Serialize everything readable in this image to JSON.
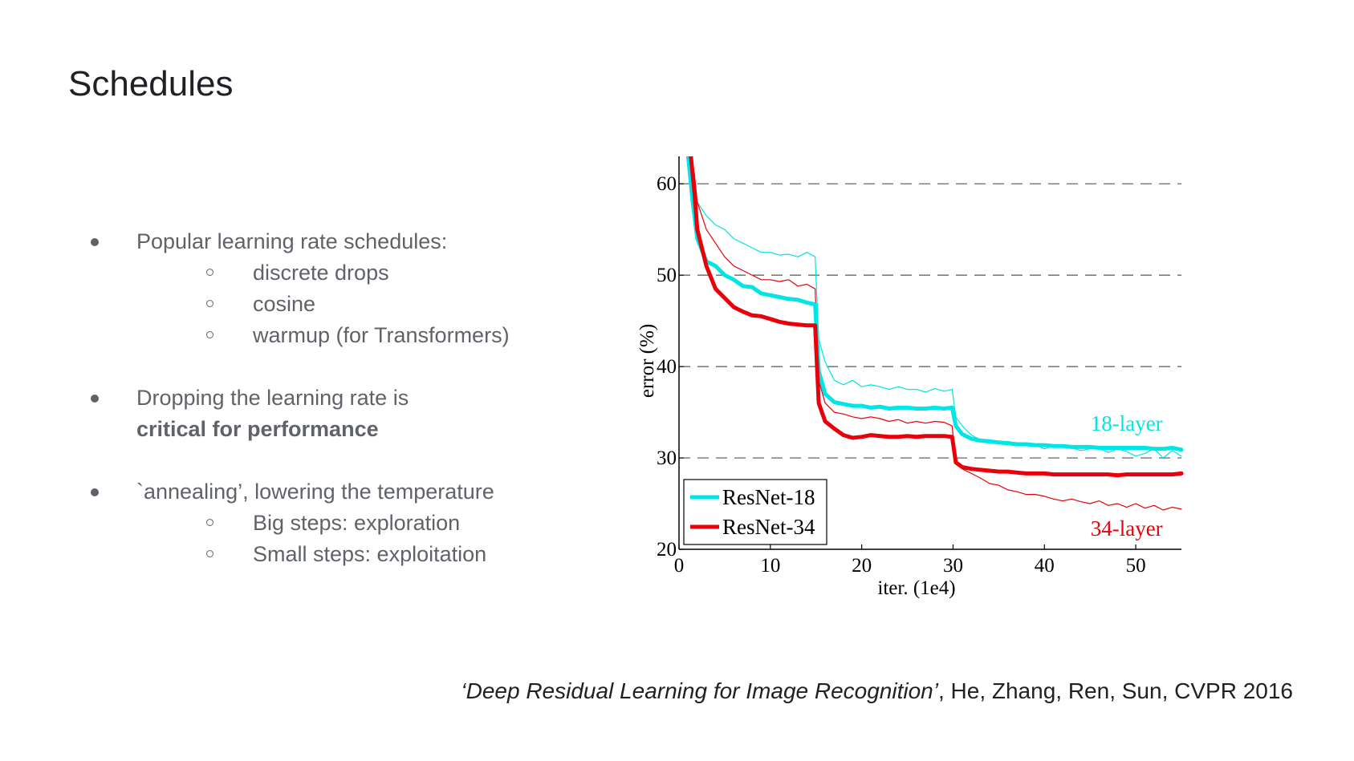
{
  "slide": {
    "title": "Schedules",
    "bullets": [
      {
        "text": "Popular learning rate schedules:",
        "sub": [
          "discrete drops",
          "cosine",
          "warmup (for Transformers)"
        ]
      },
      {
        "text": "Dropping the learning rate is",
        "bold": "critical for performance"
      },
      {
        "text": "`annealing’, lowering the temperature",
        "sub": [
          "Big steps: exploration",
          "Small steps: exploitation"
        ]
      }
    ],
    "citation": {
      "paper": "‘Deep Residual Learning for Image Recognition’",
      "rest": ", He, Zhang, Ren, Sun, CVPR 2016"
    }
  },
  "chart_data": {
    "type": "line",
    "xlabel": "iter. (1e4)",
    "ylabel": "error (%)",
    "xlim": [
      0,
      55
    ],
    "ylim": [
      20,
      63
    ],
    "xticks": [
      0,
      10,
      20,
      30,
      40,
      50
    ],
    "yticks": [
      20,
      30,
      40,
      50,
      60
    ],
    "grid": "dashed horizontal",
    "legend": "bottom-left",
    "annotations": [
      {
        "text": "18-layer",
        "x": 49,
        "y": 33,
        "color": "#00e5e5"
      },
      {
        "text": "34-layer",
        "x": 49,
        "y": 21.5,
        "color": "#e8000b"
      }
    ],
    "series": [
      {
        "name": "ResNet-18",
        "style": "thick",
        "color": "#00e5e5",
        "x": [
          1,
          1.5,
          2,
          3,
          4,
          5,
          6,
          7,
          8,
          9,
          10,
          11,
          12,
          13,
          14,
          14.9,
          15.3,
          16,
          17,
          18,
          19,
          20,
          21,
          22,
          23,
          24,
          25,
          26,
          27,
          28,
          29,
          29.9,
          30.3,
          31,
          32,
          33,
          34,
          35,
          36,
          37,
          38,
          39,
          40,
          41,
          42,
          43,
          44,
          45,
          46,
          47,
          48,
          49,
          50,
          51,
          52,
          53,
          54,
          55
        ],
        "y": [
          63,
          58,
          54,
          51.5,
          51,
          50,
          49.5,
          48.8,
          48.7,
          48,
          47.8,
          47.6,
          47.4,
          47.3,
          47,
          46.8,
          39.5,
          37,
          36.1,
          35.9,
          35.7,
          35.7,
          35.5,
          35.6,
          35.4,
          35.5,
          35.5,
          35.4,
          35.4,
          35.5,
          35.4,
          35.5,
          33.5,
          32.6,
          32.1,
          31.9,
          31.8,
          31.7,
          31.6,
          31.5,
          31.5,
          31.4,
          31.4,
          31.3,
          31.3,
          31.2,
          31.2,
          31.2,
          31.1,
          31.1,
          31.1,
          31.1,
          31.1,
          31.1,
          31,
          31,
          31.1,
          30.9
        ]
      },
      {
        "name": "ResNet-34",
        "style": "thick",
        "color": "#e8000b",
        "x": [
          1.3,
          1.7,
          2,
          3,
          4,
          5,
          6,
          7,
          8,
          9,
          10,
          11,
          12,
          13,
          14,
          14.9,
          15.3,
          16,
          17,
          18,
          19,
          20,
          21,
          22,
          23,
          24,
          25,
          26,
          27,
          28,
          29,
          29.9,
          30.3,
          31,
          32,
          33,
          34,
          35,
          36,
          37,
          38,
          39,
          40,
          41,
          42,
          43,
          44,
          45,
          46,
          47,
          48,
          49,
          50,
          51,
          52,
          53,
          54,
          55
        ],
        "y": [
          63,
          59,
          55,
          51,
          48.5,
          47.5,
          46.5,
          46,
          45.6,
          45.5,
          45.2,
          44.9,
          44.7,
          44.6,
          44.5,
          44.5,
          36,
          34,
          33.2,
          32.5,
          32.2,
          32.3,
          32.5,
          32.4,
          32.3,
          32.3,
          32.4,
          32.3,
          32.4,
          32.4,
          32.4,
          32.3,
          29.5,
          29,
          28.8,
          28.7,
          28.6,
          28.5,
          28.5,
          28.4,
          28.3,
          28.3,
          28.3,
          28.2,
          28.2,
          28.2,
          28.2,
          28.2,
          28.2,
          28.2,
          28.1,
          28.2,
          28.2,
          28.2,
          28.2,
          28.2,
          28.2,
          28.3
        ]
      },
      {
        "name": "",
        "style": "thin",
        "color": "#00e5e5",
        "x": [
          1,
          1.5,
          2,
          3,
          4,
          5,
          6,
          7,
          8,
          9,
          10,
          11,
          12,
          13,
          14,
          14.9,
          15.3,
          16,
          17,
          18,
          19,
          20,
          21,
          22,
          23,
          24,
          25,
          26,
          27,
          28,
          29,
          29.9,
          30.3,
          31,
          32,
          33,
          34,
          35,
          36,
          37,
          38,
          39,
          40,
          41,
          42,
          43,
          44,
          45,
          46,
          47,
          48,
          49,
          50,
          51,
          52,
          53,
          54,
          55
        ],
        "y": [
          63,
          60,
          58,
          56.5,
          55.5,
          55,
          54,
          53.5,
          53,
          52.5,
          52.5,
          52.2,
          52.3,
          52,
          52.5,
          52,
          43,
          40.5,
          38.5,
          38,
          38.5,
          37.8,
          38,
          37.8,
          37.5,
          37.8,
          37.5,
          37.5,
          37.2,
          37.6,
          37.3,
          37.5,
          34.5,
          33.5,
          32.5,
          32,
          32,
          31.5,
          31.8,
          31.6,
          31.5,
          31.4,
          31,
          31.3,
          31.2,
          31.1,
          30.8,
          31,
          31,
          30.6,
          31,
          30.7,
          30.2,
          30.5,
          31,
          30,
          30.8,
          30.2
        ]
      },
      {
        "name": "",
        "style": "thin",
        "color": "#e8000b",
        "x": [
          1.3,
          1.7,
          2,
          3,
          4,
          5,
          6,
          7,
          8,
          9,
          10,
          11,
          12,
          13,
          14,
          14.9,
          15.3,
          16,
          17,
          18,
          19,
          20,
          21,
          22,
          23,
          24,
          25,
          26,
          27,
          28,
          29,
          29.9,
          30.3,
          31,
          32,
          33,
          34,
          35,
          36,
          37,
          38,
          39,
          40,
          41,
          42,
          43,
          44,
          45,
          46,
          47,
          48,
          49,
          50,
          51,
          52,
          53,
          54,
          55
        ],
        "y": [
          63,
          61,
          58,
          55,
          53.5,
          52,
          51,
          50.5,
          50,
          49.5,
          49.5,
          49.3,
          49.5,
          48.8,
          49,
          48.5,
          38.5,
          36,
          35,
          34.8,
          34.5,
          34.3,
          34.5,
          34.3,
          34,
          34.2,
          33.8,
          34,
          33.8,
          34,
          33.9,
          33.5,
          29.5,
          28.8,
          28.3,
          27.8,
          27.2,
          27,
          26.5,
          26.3,
          26,
          26,
          25.8,
          25.5,
          25.3,
          25.5,
          25.2,
          25,
          25.3,
          24.8,
          25,
          24.6,
          25,
          24.5,
          24.8,
          24.3,
          24.6,
          24.4
        ]
      }
    ]
  }
}
